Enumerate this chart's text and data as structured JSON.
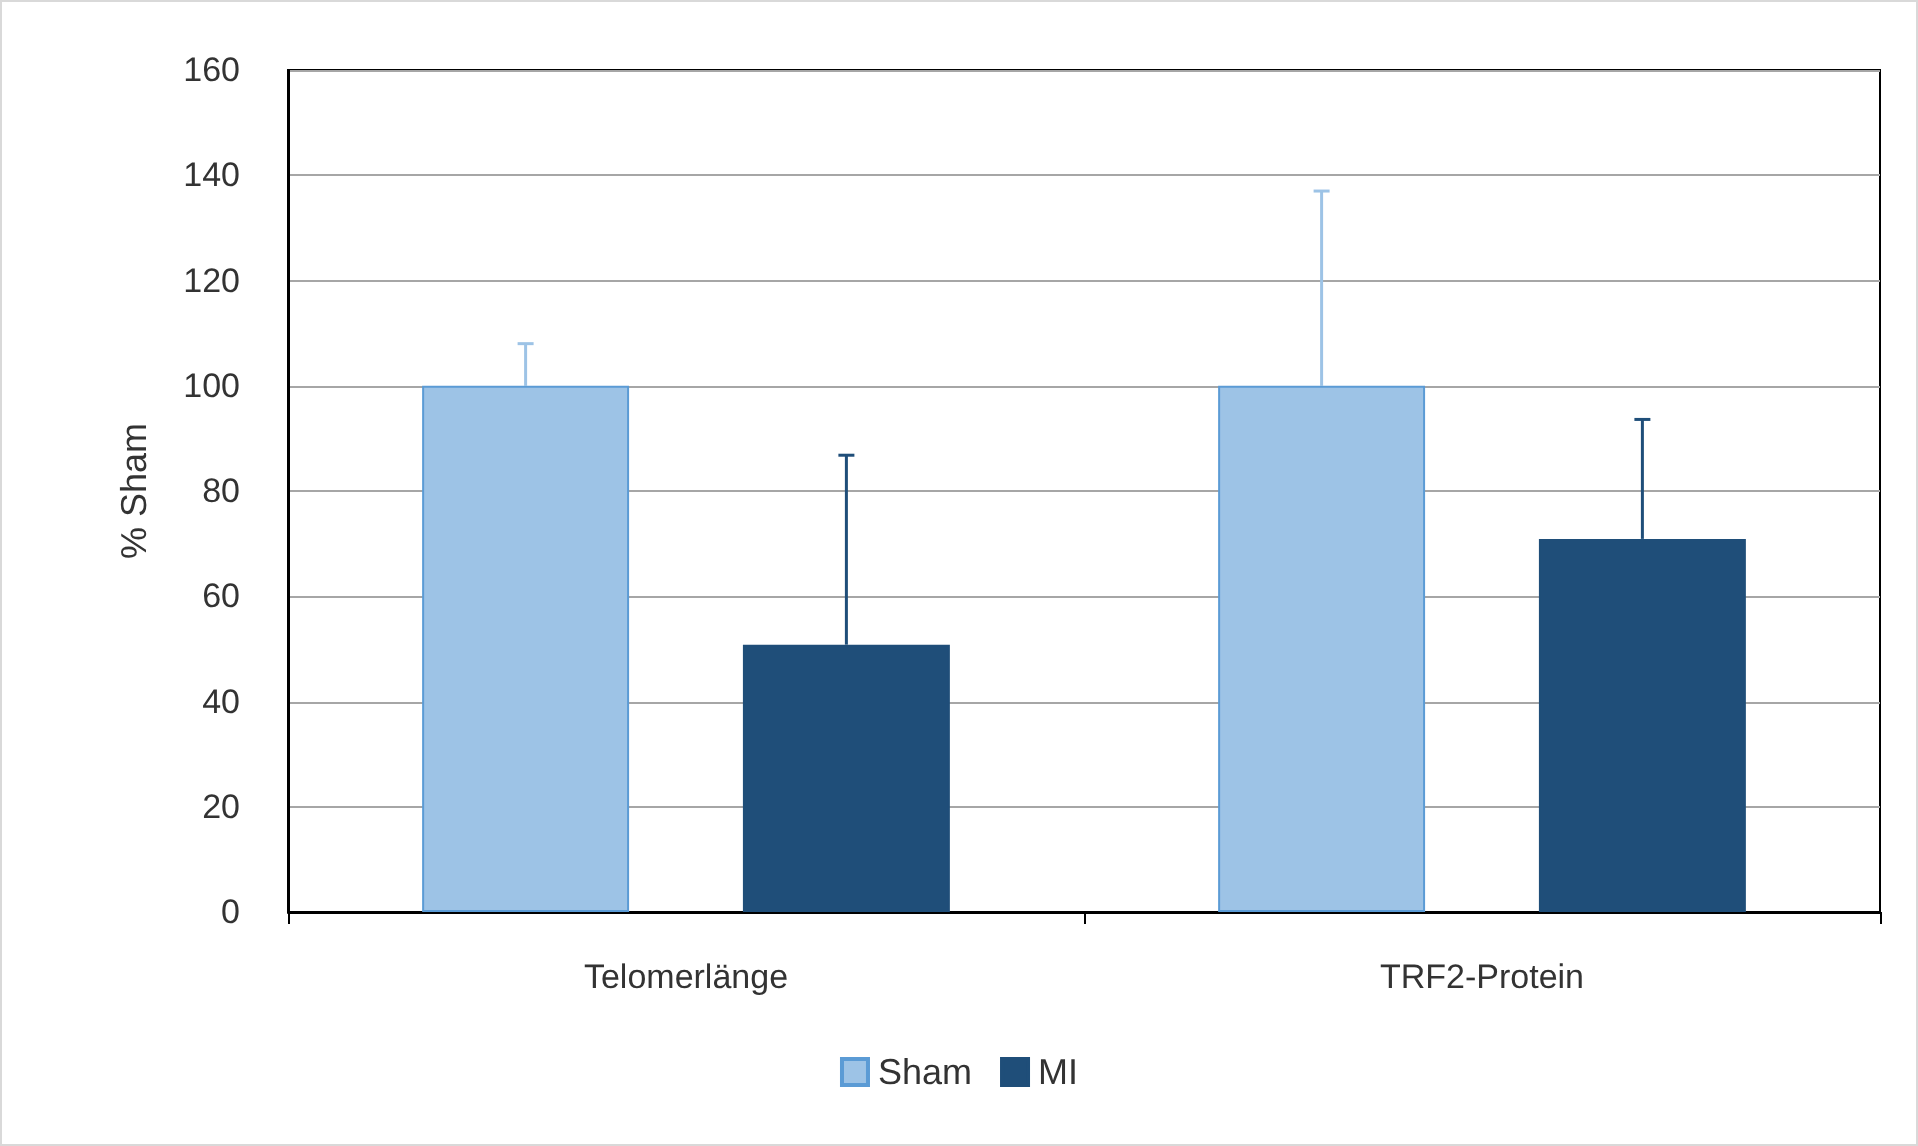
{
  "chart_data": {
    "type": "bar",
    "ylabel": "% Sham",
    "categories": [
      "Telomerlänge",
      "TRF2-Protein"
    ],
    "series": [
      {
        "name": "Sham",
        "color": "#9dc3e6",
        "values": [
          100,
          100
        ],
        "errors": [
          [
            100,
            108
          ],
          [
            100,
            137
          ]
        ]
      },
      {
        "name": "MI",
        "color": "#1f4e79",
        "values": [
          50.8,
          70.9
        ],
        "errors": [
          [
            50.8,
            86.8
          ],
          [
            70.9,
            93.6
          ]
        ]
      }
    ],
    "ylim": [
      0,
      160
    ],
    "yticks": [
      0,
      20,
      40,
      60,
      80,
      100,
      120,
      140,
      160
    ],
    "grid": "y",
    "legend": "bottom"
  }
}
